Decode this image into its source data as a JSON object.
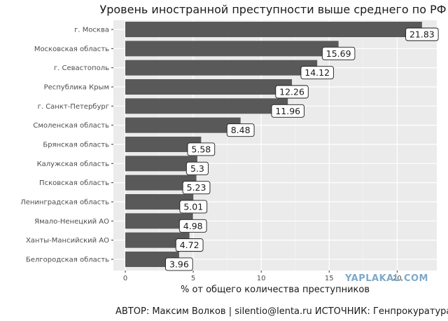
{
  "chart_data": {
    "type": "bar",
    "orientation": "horizontal",
    "title": "Уровень иностранной преступности выше среднего по РФ",
    "xlabel": "% от общего количества преступников",
    "ylabel": "",
    "xlim": [
      0,
      22.3
    ],
    "x_ticks": [
      0,
      5,
      10,
      15,
      20
    ],
    "grid": true,
    "categories": [
      "г. Москва",
      "Московская область",
      "г. Севастополь",
      "Республика Крым",
      "г. Санкт-Петербург",
      "Смоленская область",
      "Брянская область",
      "Калужская область",
      "Псковская область",
      "Ленинградская область",
      "Ямало-Ненецкий АО",
      "Ханты-Мансийский АО",
      "Белгородская область"
    ],
    "values": [
      21.83,
      15.69,
      14.12,
      12.26,
      11.96,
      8.48,
      5.58,
      5.3,
      5.23,
      5.01,
      4.98,
      4.72,
      3.96
    ],
    "value_labels": [
      "21.83",
      "15.69",
      "14.12",
      "12.26",
      "11.96",
      "8.48",
      "5.58",
      "5.3",
      "5.23",
      "5.01",
      "4.98",
      "4.72",
      "3.96"
    ],
    "bar_color": "#595959",
    "panel_color": "#ebebeb",
    "caption": "АВТОР: Максим Волков | silentio@lenta.ru ИСТОЧНИК: Генпрокуратура РФ"
  },
  "watermark": "YAPLAKAL.COM"
}
